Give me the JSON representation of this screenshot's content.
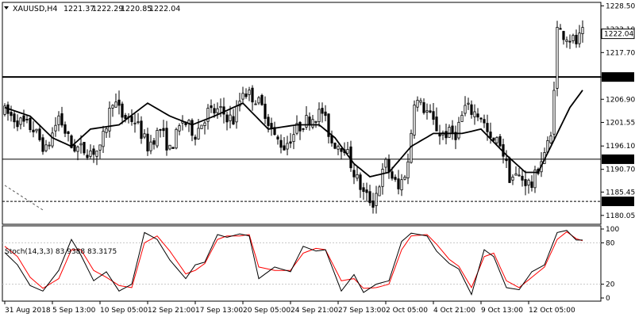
{
  "header": {
    "symbol": "XAUUSD,H4",
    "open": "1221.37",
    "high": "1222.29",
    "low": "1220.85",
    "close": "1222.04",
    "dropdown_icon": "triangle-down-icon"
  },
  "colors": {
    "background": "#ffffff",
    "candle": "#000000",
    "moving_average": "#000000",
    "stoch_main": "#000000",
    "stoch_signal": "#ff0000",
    "grid": "#c8c8c8",
    "price_tag_bg": "#000000",
    "price_tag_text": "#ffffff",
    "current_tag_bg": "#ffffff"
  },
  "chart_data": {
    "type": "candlestick",
    "title": "XAUUSD,H4",
    "ylim": [
      1178.0,
      1229.3
    ],
    "price_ticks": [
      "1228.50",
      "1223.10",
      "1217.70",
      "1212.05",
      "1206.90",
      "1201.55",
      "1196.10",
      "1190.70",
      "1185.45",
      "1180.05"
    ],
    "current_price": "1222.04",
    "levels": [
      {
        "value": 1212.05,
        "label": "1212.05",
        "style": "solid-thick"
      },
      {
        "value": 1193.04,
        "label": "1193.04",
        "style": "solid"
      },
      {
        "value": 1183.3,
        "label": "1183.30",
        "style": "dashed"
      }
    ],
    "trendline": {
      "from": [
        0,
        1187.0
      ],
      "to": [
        12,
        1181.3
      ]
    },
    "moving_average_anchors": [
      [
        0,
        1205
      ],
      [
        8,
        1203
      ],
      [
        15,
        1198
      ],
      [
        21,
        1196
      ],
      [
        27,
        1200
      ],
      [
        36,
        1201
      ],
      [
        45,
        1206
      ],
      [
        52,
        1203
      ],
      [
        59,
        1201
      ],
      [
        66,
        1203
      ],
      [
        75,
        1206
      ],
      [
        83,
        1200
      ],
      [
        92,
        1201
      ],
      [
        99,
        1201
      ],
      [
        104,
        1198
      ],
      [
        110,
        1192
      ],
      [
        115,
        1189
      ],
      [
        121,
        1190
      ],
      [
        128,
        1196
      ],
      [
        135,
        1199
      ],
      [
        144,
        1199
      ],
      [
        150,
        1200
      ],
      [
        158,
        1194
      ],
      [
        164,
        1190
      ],
      [
        168,
        1190
      ],
      [
        172,
        1196
      ],
      [
        178,
        1205
      ],
      [
        182,
        1209
      ]
    ],
    "candle_anchors": [
      [
        0,
        1204
      ],
      [
        4,
        1202
      ],
      [
        9,
        1200
      ],
      [
        13,
        1195
      ],
      [
        17,
        1203
      ],
      [
        21,
        1196
      ],
      [
        26,
        1195
      ],
      [
        30,
        1195
      ],
      [
        34,
        1207
      ],
      [
        37,
        1203
      ],
      [
        41,
        1202
      ],
      [
        45,
        1196
      ],
      [
        49,
        1200
      ],
      [
        52,
        1195
      ],
      [
        56,
        1202
      ],
      [
        60,
        1199
      ],
      [
        64,
        1204
      ],
      [
        68,
        1204
      ],
      [
        72,
        1202
      ],
      [
        75,
        1209
      ],
      [
        79,
        1207
      ],
      [
        82,
        1204
      ],
      [
        85,
        1198
      ],
      [
        88,
        1196
      ],
      [
        92,
        1200
      ],
      [
        95,
        1202
      ],
      [
        100,
        1204
      ],
      [
        103,
        1197
      ],
      [
        107,
        1196
      ],
      [
        110,
        1190
      ],
      [
        113,
        1185
      ],
      [
        116,
        1183
      ],
      [
        120,
        1192
      ],
      [
        124,
        1186
      ],
      [
        127,
        1192
      ],
      [
        129,
        1207
      ],
      [
        133,
        1204
      ],
      [
        137,
        1199
      ],
      [
        142,
        1199
      ],
      [
        145,
        1205
      ],
      [
        150,
        1203
      ],
      [
        153,
        1197
      ],
      [
        156,
        1197
      ],
      [
        159,
        1189
      ],
      [
        162,
        1189
      ],
      [
        166,
        1187
      ],
      [
        169,
        1193
      ],
      [
        172,
        1198
      ],
      [
        174,
        1223
      ],
      [
        176,
        1222
      ],
      [
        180,
        1220
      ],
      [
        182,
        1222
      ]
    ],
    "candle_count": 183,
    "stochastic": {
      "label": "Stoch(14,3,3) 83.9388 83.3175",
      "main": 83.9388,
      "signal": 83.3175,
      "ylim": [
        0,
        100
      ],
      "levels": [
        80,
        20
      ],
      "scale_ticks": [
        "100",
        "80",
        "20",
        "0"
      ],
      "main_anchors": [
        [
          0,
          66
        ],
        [
          4,
          48
        ],
        [
          8,
          18
        ],
        [
          12,
          10
        ],
        [
          17,
          40
        ],
        [
          21,
          85
        ],
        [
          24,
          62
        ],
        [
          28,
          25
        ],
        [
          32,
          38
        ],
        [
          36,
          10
        ],
        [
          40,
          20
        ],
        [
          44,
          95
        ],
        [
          48,
          85
        ],
        [
          52,
          55
        ],
        [
          57,
          28
        ],
        [
          60,
          48
        ],
        [
          63,
          52
        ],
        [
          67,
          92
        ],
        [
          70,
          88
        ],
        [
          74,
          93
        ],
        [
          77,
          90
        ],
        [
          80,
          28
        ],
        [
          85,
          45
        ],
        [
          90,
          38
        ],
        [
          94,
          75
        ],
        [
          98,
          68
        ],
        [
          101,
          70
        ],
        [
          106,
          10
        ],
        [
          110,
          34
        ],
        [
          113,
          8
        ],
        [
          117,
          20
        ],
        [
          121,
          25
        ],
        [
          125,
          82
        ],
        [
          128,
          94
        ],
        [
          133,
          90
        ],
        [
          136,
          68
        ],
        [
          140,
          50
        ],
        [
          143,
          42
        ],
        [
          147,
          5
        ],
        [
          151,
          70
        ],
        [
          154,
          60
        ],
        [
          158,
          15
        ],
        [
          162,
          12
        ],
        [
          166,
          38
        ],
        [
          170,
          48
        ],
        [
          174,
          95
        ],
        [
          177,
          98
        ],
        [
          180,
          84
        ],
        [
          182,
          84
        ]
      ],
      "signal_anchors": [
        [
          0,
          75
        ],
        [
          4,
          60
        ],
        [
          8,
          30
        ],
        [
          12,
          14
        ],
        [
          17,
          28
        ],
        [
          21,
          70
        ],
        [
          24,
          70
        ],
        [
          28,
          40
        ],
        [
          32,
          30
        ],
        [
          36,
          18
        ],
        [
          40,
          15
        ],
        [
          44,
          80
        ],
        [
          48,
          90
        ],
        [
          52,
          68
        ],
        [
          57,
          35
        ],
        [
          60,
          40
        ],
        [
          63,
          50
        ],
        [
          67,
          85
        ],
        [
          70,
          90
        ],
        [
          74,
          90
        ],
        [
          77,
          92
        ],
        [
          80,
          45
        ],
        [
          85,
          40
        ],
        [
          90,
          40
        ],
        [
          94,
          65
        ],
        [
          98,
          72
        ],
        [
          101,
          70
        ],
        [
          106,
          25
        ],
        [
          110,
          28
        ],
        [
          113,
          14
        ],
        [
          117,
          15
        ],
        [
          121,
          20
        ],
        [
          125,
          70
        ],
        [
          128,
          90
        ],
        [
          133,
          92
        ],
        [
          136,
          78
        ],
        [
          140,
          56
        ],
        [
          143,
          46
        ],
        [
          147,
          15
        ],
        [
          151,
          60
        ],
        [
          154,
          65
        ],
        [
          158,
          25
        ],
        [
          162,
          15
        ],
        [
          166,
          30
        ],
        [
          170,
          45
        ],
        [
          174,
          85
        ],
        [
          177,
          96
        ],
        [
          180,
          86
        ],
        [
          182,
          83
        ]
      ]
    },
    "x_labels": [
      {
        "label": "31 Aug 2018",
        "index": 0
      },
      {
        "label": "5 Sep 13:00",
        "index": 15
      },
      {
        "label": "10 Sep 05:00",
        "index": 30
      },
      {
        "label": "12 Sep 21:00",
        "index": 45
      },
      {
        "label": "17 Sep 13:00",
        "index": 60
      },
      {
        "label": "20 Sep 05:00",
        "index": 75
      },
      {
        "label": "24 Sep 21:00",
        "index": 90
      },
      {
        "label": "27 Sep 13:00",
        "index": 105
      },
      {
        "label": "2 Oct 05:00",
        "index": 120
      },
      {
        "label": "4 Oct 21:00",
        "index": 135
      },
      {
        "label": "9 Oct 13:00",
        "index": 150
      },
      {
        "label": "12 Oct 05:00",
        "index": 165
      }
    ]
  }
}
